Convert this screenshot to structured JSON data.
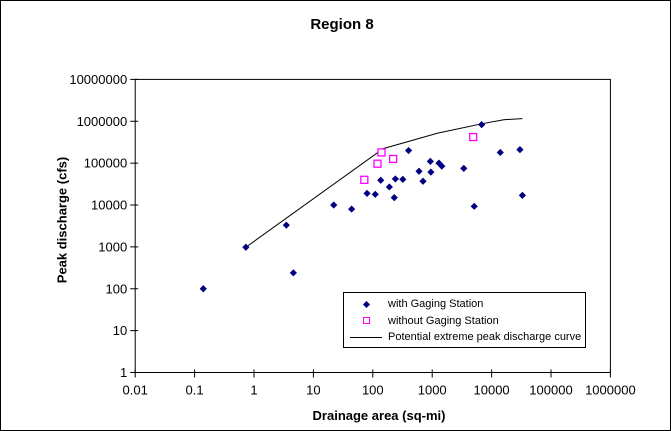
{
  "chart_data": {
    "type": "scatter",
    "title": "Region 8",
    "xlabel": "Drainage area (sq-mi)",
    "ylabel": "Peak discharge (cfs)",
    "x_scale": "log",
    "y_scale": "log",
    "xlim": [
      0.01,
      1000000
    ],
    "ylim": [
      1,
      10000000
    ],
    "grid": false,
    "legend_position": "inside-bottom-right",
    "x_ticks": [
      {
        "v": 0.01,
        "label": "0.01"
      },
      {
        "v": 0.1,
        "label": "0.1"
      },
      {
        "v": 1,
        "label": "1"
      },
      {
        "v": 10,
        "label": "10"
      },
      {
        "v": 100,
        "label": "100"
      },
      {
        "v": 1000,
        "label": "1000"
      },
      {
        "v": 10000,
        "label": "10000"
      },
      {
        "v": 100000,
        "label": "100000"
      },
      {
        "v": 1000000,
        "label": "1000000"
      }
    ],
    "y_ticks": [
      {
        "v": 1,
        "label": "1"
      },
      {
        "v": 10,
        "label": "10"
      },
      {
        "v": 100,
        "label": "100"
      },
      {
        "v": 1000,
        "label": "1000"
      },
      {
        "v": 10000,
        "label": "10000"
      },
      {
        "v": 100000,
        "label": "100000"
      },
      {
        "v": 1000000,
        "label": "1000000"
      },
      {
        "v": 10000000,
        "label": "10000000"
      }
    ],
    "series": [
      {
        "name": "with Gaging Station",
        "marker": "diamond",
        "color": "#000080",
        "points": [
          [
            0.14,
            100
          ],
          [
            0.73,
            980
          ],
          [
            3.5,
            3300
          ],
          [
            4.6,
            240
          ],
          [
            22,
            10000
          ],
          [
            44,
            8000
          ],
          [
            80,
            19000
          ],
          [
            110,
            18000
          ],
          [
            136,
            39000
          ],
          [
            190,
            27000
          ],
          [
            230,
            15000
          ],
          [
            240,
            42000
          ],
          [
            320,
            41000
          ],
          [
            400,
            200000
          ],
          [
            600,
            64000
          ],
          [
            700,
            37000
          ],
          [
            930,
            110000
          ],
          [
            950,
            61000
          ],
          [
            1300,
            100000
          ],
          [
            1450,
            85000
          ],
          [
            3400,
            75000
          ],
          [
            5100,
            9300
          ],
          [
            6800,
            830000
          ],
          [
            14000,
            180000
          ],
          [
            30000,
            210000
          ],
          [
            33000,
            17000
          ]
        ]
      },
      {
        "name": "without Gaging Station",
        "marker": "open-square",
        "color": "#FF00FF",
        "points": [
          [
            72,
            40000
          ],
          [
            120,
            97000
          ],
          [
            140,
            180000
          ],
          [
            220,
            126000
          ],
          [
            4900,
            420000
          ]
        ]
      },
      {
        "name": "Potential extreme peak discharge curve",
        "type": "line",
        "marker": "none",
        "color": "#000000",
        "points": [
          [
            0.73,
            980
          ],
          [
            150,
            222000
          ],
          [
            1240,
            520000
          ],
          [
            6800,
            870000
          ],
          [
            16000,
            1090000
          ],
          [
            33000,
            1160000
          ]
        ]
      }
    ]
  }
}
